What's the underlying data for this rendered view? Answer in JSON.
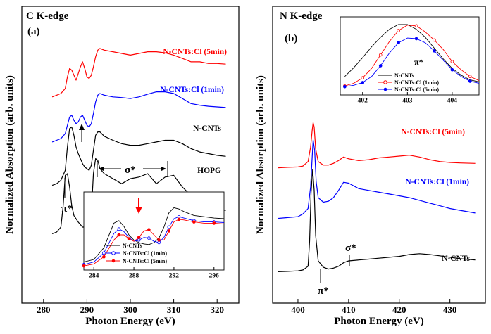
{
  "chart_data": [
    {
      "id": "a",
      "type": "line",
      "panel_label": "(a)",
      "title": "C K-edge",
      "xlabel": "Photon Energy (eV)",
      "ylabel": "Normalized Absorption (arb. units)",
      "xlim": [
        275,
        325
      ],
      "xticks": [
        280,
        290,
        300,
        310,
        320
      ],
      "grid": false,
      "series": [
        {
          "name": "N-CNTs:Cl (5min)",
          "color": "#ff0000",
          "x": [
            282,
            283,
            284,
            285,
            285.5,
            286,
            286.5,
            287,
            287.5,
            288,
            288.5,
            289,
            289.5,
            290,
            290.5,
            291,
            291.5,
            292,
            292.5,
            293,
            294,
            296,
            298,
            300,
            302,
            304,
            306,
            308,
            310,
            312,
            314,
            316,
            318,
            320,
            322
          ],
          "y": [
            5.9,
            5.95,
            6.0,
            6.15,
            6.5,
            6.75,
            6.7,
            6.55,
            6.4,
            6.6,
            6.8,
            6.95,
            6.75,
            6.5,
            6.45,
            6.55,
            6.8,
            7.1,
            7.3,
            7.35,
            7.3,
            7.25,
            7.2,
            7.15,
            7.2,
            7.25,
            7.25,
            7.22,
            7.15,
            7.05,
            6.95,
            6.95,
            6.9,
            6.9,
            6.88
          ]
        },
        {
          "name": "N-CNTs:Cl (1min)",
          "color": "#0000ff",
          "x": [
            282,
            283,
            284,
            285,
            285.5,
            286,
            286.5,
            287,
            287.5,
            288,
            288.5,
            289,
            289.5,
            290,
            290.5,
            291,
            291.5,
            292,
            292.5,
            293,
            294,
            296,
            298,
            300,
            302,
            304,
            306,
            308,
            310,
            312,
            314,
            316,
            318,
            320,
            322
          ],
          "y": [
            4.55,
            4.6,
            4.65,
            4.8,
            5.05,
            5.3,
            5.35,
            5.2,
            5.1,
            5.15,
            5.3,
            5.35,
            5.2,
            5.05,
            5.0,
            5.1,
            5.4,
            5.75,
            5.95,
            6.0,
            5.95,
            5.9,
            5.88,
            5.85,
            5.9,
            5.98,
            6.05,
            6.05,
            6.0,
            5.85,
            5.7,
            5.65,
            5.62,
            5.6,
            5.58
          ]
        },
        {
          "name": "N-CNTs",
          "color": "#000000",
          "x": [
            282,
            283,
            284,
            285,
            285.5,
            286,
            286.5,
            287,
            287.5,
            288,
            288.5,
            289,
            289.5,
            290,
            290.5,
            291,
            291.5,
            292,
            292.5,
            293,
            294,
            296,
            298,
            300,
            302,
            304,
            306,
            308,
            310,
            312,
            314,
            316,
            318,
            320,
            322
          ],
          "y": [
            3.25,
            3.3,
            3.4,
            3.7,
            4.4,
            4.95,
            5.0,
            4.75,
            4.4,
            4.2,
            4.05,
            3.9,
            3.8,
            3.75,
            3.7,
            3.85,
            4.3,
            4.75,
            4.85,
            4.85,
            4.72,
            4.6,
            4.5,
            4.45,
            4.45,
            4.5,
            4.55,
            4.6,
            4.6,
            4.5,
            4.35,
            4.25,
            4.2,
            4.15,
            4.12
          ]
        },
        {
          "name": "HOPG",
          "color": "#000000",
          "x": [
            282,
            283,
            284,
            284.5,
            285,
            285.5,
            286,
            286.5,
            287,
            288,
            289,
            290,
            291,
            291.5,
            292,
            292.5,
            293,
            294,
            296,
            298,
            300,
            302,
            304,
            306,
            308,
            310,
            312,
            314,
            316,
            318,
            320,
            322
          ],
          "y": [
            1.8,
            1.85,
            2.0,
            2.6,
            3.55,
            3.6,
            3.2,
            2.65,
            2.35,
            2.15,
            2.0,
            2.0,
            2.4,
            3.6,
            4.05,
            4.0,
            3.75,
            3.6,
            3.45,
            3.3,
            3.45,
            3.5,
            3.6,
            3.3,
            3.5,
            3.55,
            3.2,
            2.95,
            2.75,
            2.6,
            2.55,
            2.5
          ]
        }
      ],
      "annotations": [
        "π*",
        "σ*"
      ],
      "inset": {
        "xlim": [
          283,
          297
        ],
        "xticks": [
          284,
          288,
          292,
          296
        ],
        "series": [
          {
            "name": "N-CNTs",
            "color": "#000000",
            "x": [
              283,
              284,
              285,
              286,
              286.5,
              287,
              287.5,
              288,
              288.5,
              289,
              289.5,
              290,
              290.5,
              291,
              291.5,
              292,
              292.5,
              293,
              294,
              295,
              296,
              297
            ],
            "y": [
              0.08,
              0.12,
              0.3,
              0.68,
              0.72,
              0.63,
              0.5,
              0.42,
              0.38,
              0.36,
              0.35,
              0.38,
              0.45,
              0.62,
              0.84,
              0.92,
              0.9,
              0.86,
              0.8,
              0.78,
              0.76,
              0.75
            ]
          },
          {
            "name": "N-CNTs:Cl (1min)",
            "color": "#0000ff",
            "x": [
              283,
              284,
              285,
              286,
              286.5,
              287,
              287.5,
              288,
              288.5,
              289,
              289.5,
              290,
              290.5,
              291,
              291.5,
              292,
              292.5,
              293,
              294,
              295,
              296,
              297
            ],
            "y": [
              0.04,
              0.08,
              0.22,
              0.52,
              0.59,
              0.55,
              0.46,
              0.4,
              0.42,
              0.46,
              0.45,
              0.4,
              0.38,
              0.46,
              0.62,
              0.75,
              0.78,
              0.76,
              0.72,
              0.7,
              0.7,
              0.69
            ]
          },
          {
            "name": "N-CNTs:Cl (5min)",
            "color": "#ff0000",
            "x": [
              283,
              284,
              285,
              286,
              286.5,
              287,
              287.5,
              288,
              288.5,
              289,
              289.5,
              290,
              290.5,
              291,
              291.5,
              292,
              292.5,
              293,
              294,
              295,
              296,
              297
            ],
            "y": [
              0.02,
              0.05,
              0.16,
              0.42,
              0.5,
              0.5,
              0.44,
              0.4,
              0.46,
              0.56,
              0.58,
              0.5,
              0.42,
              0.42,
              0.56,
              0.7,
              0.74,
              0.73,
              0.7,
              0.68,
              0.68,
              0.67
            ]
          }
        ]
      }
    },
    {
      "id": "b",
      "type": "line",
      "panel_label": "(b)",
      "title": "N K-edge",
      "xlabel": "Photon Energy (eV)",
      "ylabel": "Normalized Absorption (arb. units)",
      "xlim": [
        395,
        437
      ],
      "xticks": [
        400,
        410,
        420,
        430
      ],
      "grid": false,
      "series": [
        {
          "name": "N-CNTs:Cl (5min)",
          "color": "#ff0000",
          "x": [
            396,
            398,
            400,
            401,
            402,
            402.5,
            402.8,
            403,
            403.2,
            403.5,
            404,
            405,
            406,
            407,
            408,
            409,
            410,
            412,
            414,
            416,
            418,
            420,
            422,
            424,
            426,
            428,
            430,
            432,
            435
          ],
          "y": [
            7.25,
            7.28,
            7.3,
            7.35,
            7.6,
            8.4,
            9.3,
            9.75,
            9.5,
            8.3,
            7.6,
            7.4,
            7.4,
            7.5,
            7.65,
            7.85,
            7.75,
            7.65,
            7.7,
            7.8,
            7.85,
            7.9,
            7.95,
            7.85,
            7.7,
            7.6,
            7.55,
            7.52,
            7.5
          ]
        },
        {
          "name": "N-CNTs:Cl (1min)",
          "color": "#0000ff",
          "x": [
            396,
            398,
            400,
            401,
            402,
            402.5,
            402.8,
            403,
            403.3,
            403.6,
            404,
            405,
            406,
            407,
            408,
            409,
            410,
            412,
            414,
            416,
            418,
            420,
            422,
            424,
            426,
            428,
            430,
            432,
            435
          ],
          "y": [
            4.45,
            4.5,
            4.55,
            4.7,
            5.0,
            6.2,
            7.8,
            8.8,
            8.2,
            6.5,
            5.6,
            5.35,
            5.4,
            5.6,
            6.0,
            6.45,
            6.4,
            6.1,
            6.0,
            5.9,
            5.8,
            5.7,
            5.6,
            5.45,
            5.3,
            5.15,
            5.0,
            4.9,
            4.75
          ]
        },
        {
          "name": "N-CNTs",
          "color": "#000000",
          "x": [
            396,
            398,
            400,
            401,
            402,
            402.3,
            402.6,
            402.9,
            403.2,
            403.5,
            404,
            405,
            406,
            407,
            408,
            409,
            410,
            412,
            414,
            416,
            418,
            420,
            422,
            424,
            426,
            428,
            430,
            432,
            435
          ],
          "y": [
            1.5,
            1.52,
            1.55,
            1.6,
            1.8,
            3.2,
            5.9,
            7.15,
            6.0,
            3.5,
            2.1,
            1.75,
            1.65,
            1.7,
            1.8,
            2.0,
            2.1,
            2.15,
            2.2,
            2.25,
            2.3,
            2.35,
            2.45,
            2.5,
            2.45,
            2.38,
            2.3,
            2.22,
            2.15
          ]
        }
      ],
      "annotations": [
        "π*",
        "σ*"
      ],
      "inset": {
        "title": "π*",
        "xlim": [
          401.5,
          404.6
        ],
        "xticks": [
          402,
          403,
          404
        ],
        "series": [
          {
            "name": "N-CNTs",
            "color": "#000000",
            "x": [
              401.6,
              401.8,
              402,
              402.2,
              402.4,
              402.6,
              402.8,
              403,
              403.2,
              403.4,
              403.6,
              403.8,
              404,
              404.2,
              404.4,
              404.6
            ],
            "y": [
              0.2,
              0.33,
              0.48,
              0.64,
              0.78,
              0.9,
              0.97,
              0.97,
              0.9,
              0.78,
              0.62,
              0.46,
              0.32,
              0.22,
              0.15,
              0.12
            ]
          },
          {
            "name": "N-CNTs:Cl (1min)",
            "color": "#ff0000",
            "x": [
              401.6,
              401.8,
              402,
              402.2,
              402.4,
              402.6,
              402.8,
              403,
              403.2,
              403.4,
              403.6,
              403.8,
              404,
              404.2,
              404.4,
              404.6
            ],
            "y": [
              0.06,
              0.1,
              0.18,
              0.32,
              0.52,
              0.72,
              0.88,
              0.96,
              0.95,
              0.86,
              0.74,
              0.6,
              0.42,
              0.3,
              0.2,
              0.14
            ]
          },
          {
            "name": "N-CNTs:Cl (5min)",
            "color": "#0000ff",
            "x": [
              401.6,
              401.8,
              402,
              402.2,
              402.4,
              402.6,
              402.8,
              403,
              403.2,
              403.4,
              403.6,
              403.8,
              404,
              404.2,
              404.4,
              404.6
            ],
            "y": [
              0.05,
              0.07,
              0.11,
              0.2,
              0.36,
              0.55,
              0.7,
              0.77,
              0.76,
              0.7,
              0.58,
              0.44,
              0.3,
              0.2,
              0.13,
              0.1
            ]
          }
        ]
      }
    }
  ]
}
